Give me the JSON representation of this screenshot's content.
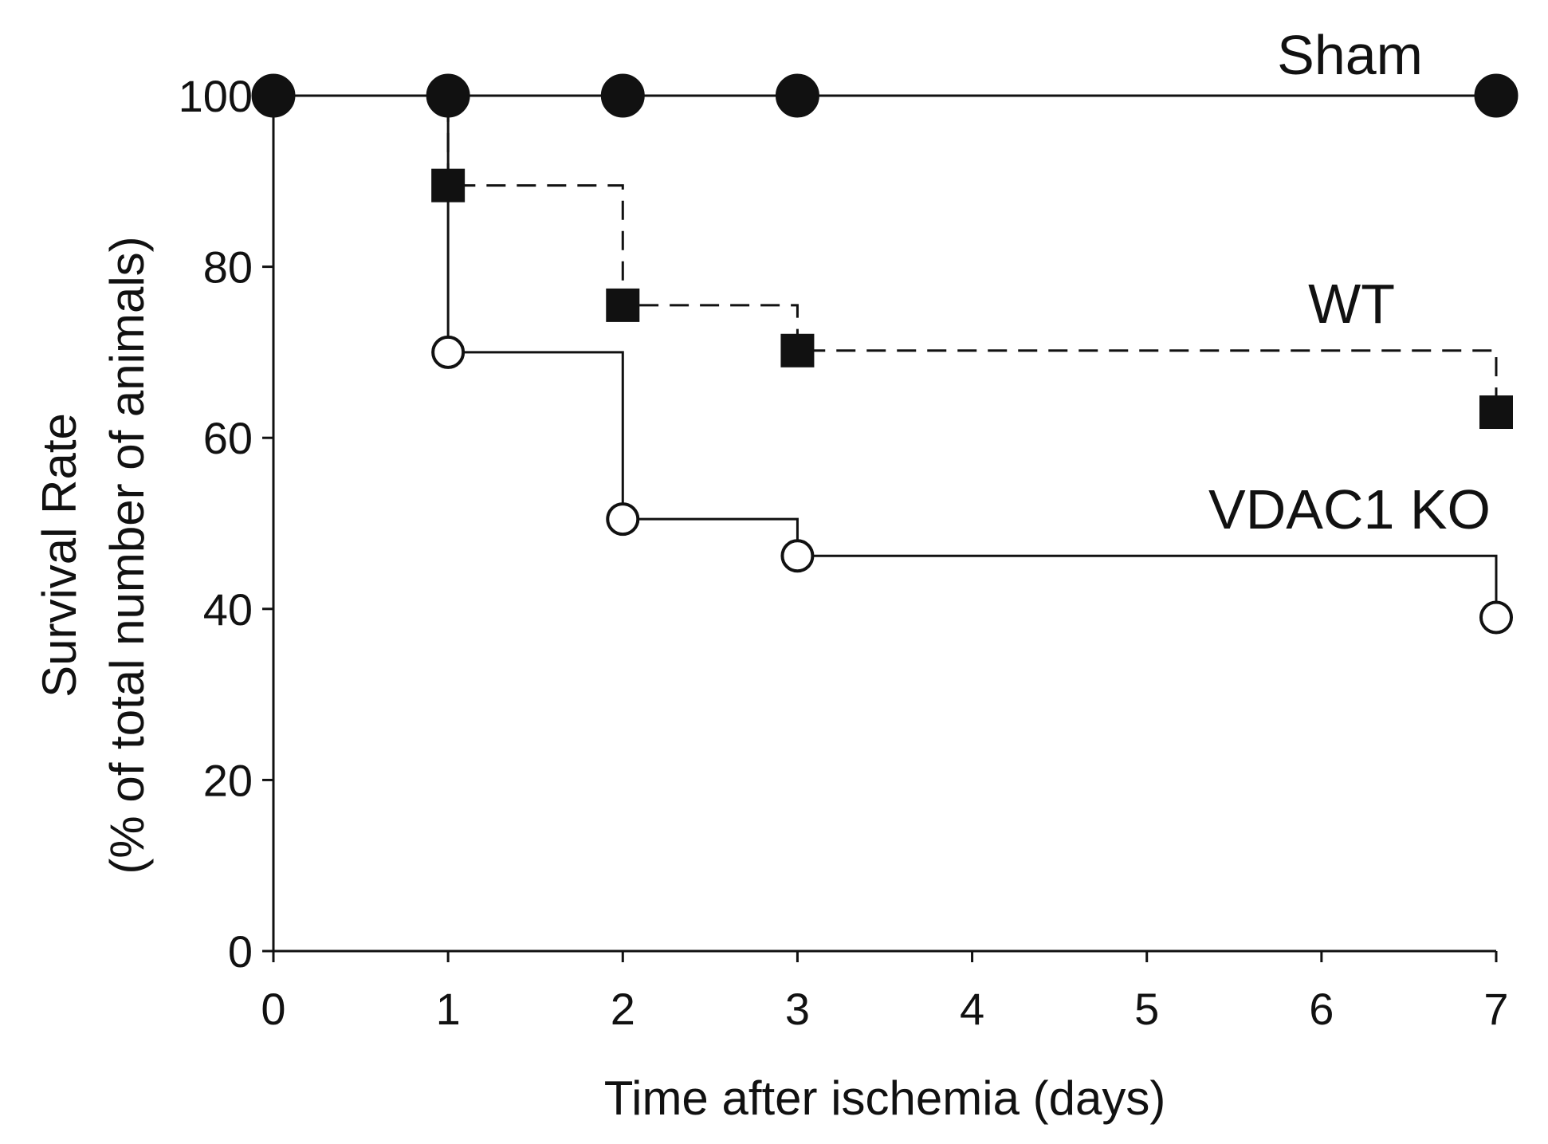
{
  "chart_data": {
    "type": "line",
    "subtype": "kaplan-meier step survival curve",
    "xlabel": "Time after ischemia (days)",
    "ylabel": "Survival Rate",
    "ylabel_sub": "(% of total number of animals)",
    "xlim": [
      0,
      7
    ],
    "ylim": [
      0,
      100
    ],
    "xticks": [
      0,
      1,
      2,
      3,
      4,
      5,
      6,
      7
    ],
    "yticks": [
      0,
      20,
      40,
      60,
      80,
      100
    ],
    "grid": false,
    "series": [
      {
        "name": "Sham",
        "marker": "filled-circle",
        "line": "solid",
        "x": [
          0,
          1,
          2,
          3,
          7
        ],
        "y": [
          100,
          100,
          100,
          100,
          100
        ]
      },
      {
        "name": "WT",
        "marker": "filled-square",
        "line": "dashed",
        "x": [
          0,
          1,
          2,
          3,
          7
        ],
        "y": [
          100,
          89.5,
          75.5,
          70.2,
          63
        ]
      },
      {
        "name": "VDAC1 KO",
        "marker": "open-circle",
        "line": "solid",
        "x": [
          0,
          1,
          2,
          3,
          7
        ],
        "y": [
          100,
          70,
          50.5,
          46.2,
          39
        ]
      }
    ],
    "colors": {
      "ink": "#111111",
      "background": "#ffffff"
    }
  }
}
